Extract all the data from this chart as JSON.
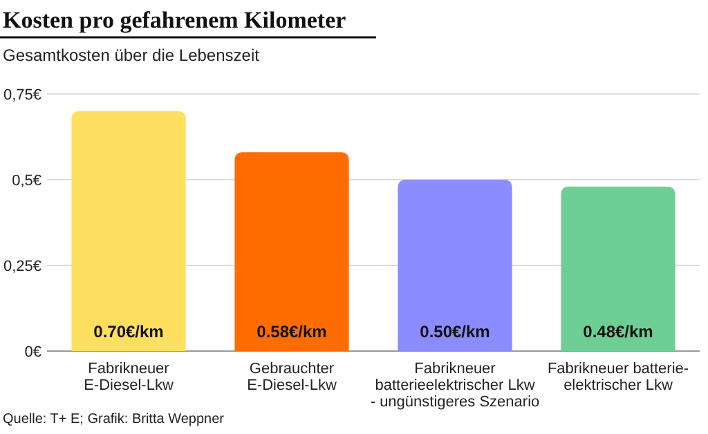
{
  "chart_data": {
    "type": "bar",
    "title": "Kosten  pro gefahrenem Kilometer",
    "subtitle": "Gesamtkosten über die Lebenszeit",
    "categories": [
      "Fabrikneuer\nE-Diesel-Lkw",
      "Gebrauchter\nE-Diesel-Lkw",
      "Fabrikneuer\nbatterieelektrischer Lkw\n- ungünstigeres Szenario",
      "Fabrikneuer batterie-\nelektrischer Lkw"
    ],
    "values": [
      0.7,
      0.58,
      0.5,
      0.48
    ],
    "colors": [
      "#ffdf5f",
      "#ff6d00",
      "#8a8cff",
      "#6dcf94"
    ],
    "value_labels": [
      "0.70€/km",
      "0.58€/km",
      "0.50€/km",
      "0.48€/km"
    ],
    "ylim": [
      0,
      0.75
    ],
    "yticks": [
      {
        "value": 0,
        "label": "0€"
      },
      {
        "value": 0.25,
        "label": "0,25€"
      },
      {
        "value": 0.5,
        "label": "0,5€"
      },
      {
        "value": 0.75,
        "label": "0,75€"
      }
    ],
    "grid": "y",
    "annotations": [
      "Quelle: T+ E; Grafik: Britta Weppner"
    ]
  }
}
